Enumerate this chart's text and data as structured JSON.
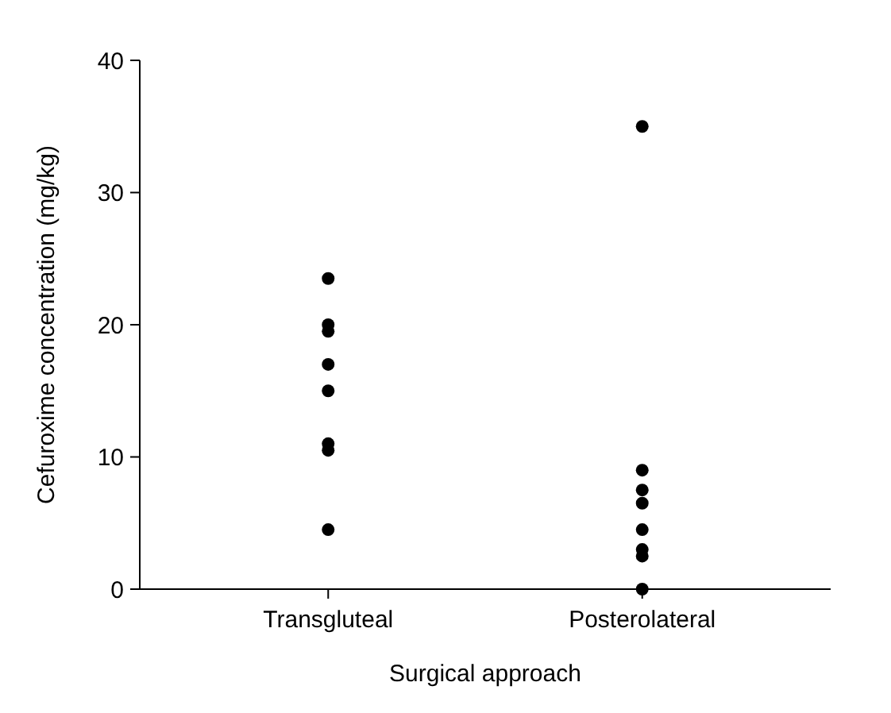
{
  "chart_data": {
    "type": "scatter",
    "categories": [
      "Transgluteal",
      "Posterolateral"
    ],
    "xlabel": "Surgical approach",
    "ylabel": "Cefuroxime concentration (mg/kg)",
    "ylim": [
      0,
      40
    ],
    "yticks": [
      0,
      10,
      20,
      30,
      40
    ],
    "marker": "circle",
    "series": [
      {
        "color": "#000000",
        "x": [
          "Transgluteal",
          "Transgluteal",
          "Transgluteal",
          "Transgluteal",
          "Transgluteal",
          "Transgluteal",
          "Transgluteal",
          "Transgluteal"
        ],
        "values": [
          23.5,
          20,
          19.5,
          17,
          15,
          11,
          10.5,
          4.5
        ]
      },
      {
        "color": "#000000",
        "x": [
          "Posterolateral",
          "Posterolateral",
          "Posterolateral",
          "Posterolateral",
          "Posterolateral",
          "Posterolateral",
          "Posterolateral",
          "Posterolateral"
        ],
        "values": [
          35,
          9,
          7.5,
          6.5,
          4.5,
          3,
          2.5,
          0
        ]
      }
    ]
  }
}
